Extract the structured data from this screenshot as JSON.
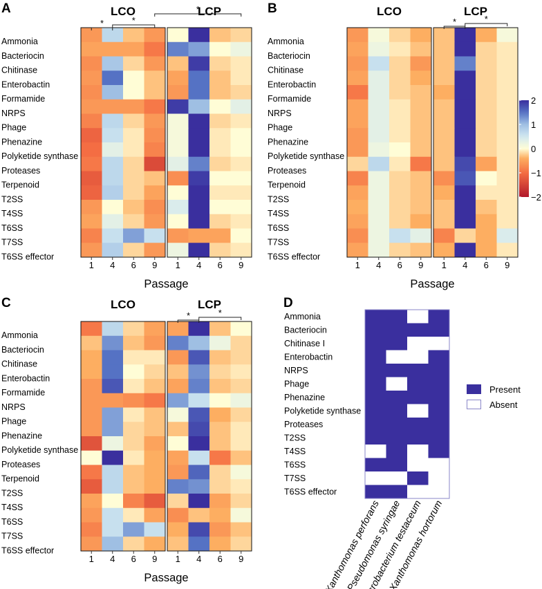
{
  "figure": {
    "cols": [
      "1",
      "4",
      "6",
      "9"
    ],
    "rows_main": [
      "Ammonia",
      "Bacteriocin",
      "Chitinase",
      "Enterobactin",
      "Formamide",
      "NRPS",
      "Phage",
      "Phenazine",
      "Polyketide synthase",
      "Proteases",
      "Terpenoid",
      "T2SS",
      "T4SS",
      "T6SS",
      "T7SS",
      "T6SS effector"
    ],
    "xlabel": "Passage",
    "group_left": "LCO",
    "group_right": "LCP",
    "star": "*",
    "colorbar_ticks": [
      "2",
      "1",
      "0",
      "−1",
      "−2"
    ],
    "colorbar_values": [
      2,
      1,
      0,
      -1,
      -2
    ],
    "colors": {
      "high": "#3a2f9e",
      "mid": "#fffdd6",
      "low": "#c1201e",
      "border": "#111111"
    }
  },
  "chart_data": [
    {
      "panel": "A",
      "type": "heatmap",
      "xlabel": "Passage",
      "zlim": [
        -2,
        2
      ],
      "groups": [
        {
          "name": "LCO",
          "values": [
            [
              -0.6,
              0.7,
              -0.3,
              -0.6
            ],
            [
              -0.5,
              -0.5,
              -0.5,
              -0.9
            ],
            [
              -0.7,
              0.9,
              -0.2,
              -0.6
            ],
            [
              -0.6,
              1.5,
              0.0,
              -0.3
            ],
            [
              -0.7,
              1.0,
              0.0,
              -0.3
            ],
            [
              -0.6,
              -0.6,
              -0.6,
              -0.9
            ],
            [
              -0.8,
              0.7,
              -0.2,
              -0.6
            ],
            [
              -1.1,
              0.6,
              -0.1,
              -0.7
            ],
            [
              -1.0,
              0.3,
              -0.1,
              -0.8
            ],
            [
              -0.9,
              0.7,
              -0.2,
              -1.4
            ],
            [
              -1.2,
              0.7,
              -0.2,
              -0.3
            ],
            [
              -1.1,
              0.8,
              -0.2,
              -0.5
            ],
            [
              -0.6,
              0.0,
              -0.3,
              -0.7
            ],
            [
              -0.5,
              0.3,
              -0.2,
              -0.6
            ],
            [
              -0.8,
              0.6,
              1.2,
              0.6
            ],
            [
              -0.6,
              0.8,
              -0.2,
              -0.6
            ]
          ]
        },
        {
          "name": "LCP",
          "values": [
            [
              0.0,
              2.0,
              -0.3,
              -0.2
            ],
            [
              1.4,
              1.2,
              0.0,
              0.2
            ],
            [
              -0.3,
              1.9,
              -0.2,
              -0.1
            ],
            [
              -0.5,
              1.5,
              -0.3,
              -0.1
            ],
            [
              -0.6,
              1.5,
              -0.3,
              -0.2
            ],
            [
              1.9,
              1.0,
              0.0,
              0.3
            ],
            [
              0.1,
              2.0,
              -0.2,
              -0.1
            ],
            [
              0.1,
              2.0,
              -0.1,
              0.0
            ],
            [
              0.1,
              2.0,
              -0.1,
              0.0
            ],
            [
              0.3,
              1.4,
              -0.2,
              -0.1
            ],
            [
              -0.7,
              1.9,
              0.0,
              0.0
            ],
            [
              0.0,
              2.0,
              -0.1,
              -0.1
            ],
            [
              0.4,
              2.0,
              0.0,
              0.0
            ],
            [
              0.0,
              2.0,
              -0.2,
              -0.1
            ],
            [
              -0.6,
              -0.5,
              -0.5,
              0.0
            ],
            [
              0.2,
              2.0,
              -0.2,
              -0.1
            ]
          ]
        }
      ],
      "brackets": [
        {
          "group": "LCO",
          "from": 0,
          "to": 1
        },
        {
          "group": "LCO",
          "from": 1,
          "to": 3
        },
        {
          "group": "LCO-LCP",
          "from": 3,
          "to": 7
        }
      ]
    },
    {
      "panel": "B",
      "type": "heatmap",
      "xlabel": "Passage",
      "zlim": [
        -2,
        2
      ],
      "groups": [
        {
          "name": "LCO",
          "values": [
            [
              -0.6,
              0.1,
              -0.2,
              -0.4
            ],
            [
              -0.5,
              0.2,
              -0.1,
              -0.3
            ],
            [
              -0.6,
              0.6,
              -0.2,
              -0.6
            ],
            [
              -0.5,
              0.3,
              -0.2,
              -0.4
            ],
            [
              -0.9,
              0.3,
              -0.2,
              -0.3
            ],
            [
              -0.5,
              0.3,
              -0.1,
              -0.3
            ],
            [
              -0.5,
              0.3,
              -0.1,
              -0.3
            ],
            [
              -0.6,
              0.3,
              -0.1,
              -0.3
            ],
            [
              -0.6,
              0.2,
              0.0,
              -0.3
            ],
            [
              -0.2,
              0.7,
              -0.1,
              -0.9
            ],
            [
              -0.8,
              0.2,
              -0.2,
              -0.3
            ],
            [
              -0.5,
              0.2,
              -0.2,
              -0.3
            ],
            [
              -0.4,
              0.2,
              -0.2,
              -0.3
            ],
            [
              -0.5,
              0.2,
              -0.2,
              -0.4
            ],
            [
              -0.7,
              0.2,
              0.6,
              0.3
            ],
            [
              -0.5,
              0.2,
              -0.2,
              -0.3
            ]
          ]
        },
        {
          "name": "LCP",
          "values": [
            [
              -0.3,
              2.0,
              -0.4,
              0.1
            ],
            [
              -0.3,
              2.0,
              -0.2,
              -0.1
            ],
            [
              -0.3,
              1.4,
              -0.2,
              -0.1
            ],
            [
              -0.3,
              2.0,
              -0.2,
              -0.1
            ],
            [
              -0.4,
              2.0,
              -0.2,
              -0.1
            ],
            [
              -0.3,
              2.0,
              -0.2,
              -0.1
            ],
            [
              -0.3,
              2.0,
              -0.2,
              -0.1
            ],
            [
              -0.3,
              2.0,
              -0.2,
              -0.1
            ],
            [
              -0.3,
              2.0,
              -0.2,
              -0.1
            ],
            [
              -0.3,
              1.8,
              -0.5,
              -0.1
            ],
            [
              -0.7,
              1.7,
              0.0,
              -0.1
            ],
            [
              -0.4,
              2.0,
              -0.1,
              -0.1
            ],
            [
              -0.3,
              2.0,
              -0.3,
              -0.1
            ],
            [
              -0.3,
              2.0,
              -0.4,
              -0.1
            ],
            [
              -0.8,
              -0.2,
              -0.4,
              0.4
            ],
            [
              -0.4,
              2.0,
              -0.4,
              -0.1
            ]
          ]
        }
      ],
      "brackets": [
        {
          "group": "LCP",
          "from": 0,
          "to": 1
        },
        {
          "group": "LCP",
          "from": 1,
          "to": 3
        }
      ]
    },
    {
      "panel": "C",
      "type": "heatmap",
      "xlabel": "Passage",
      "zlim": [
        -2,
        2
      ],
      "groups": [
        {
          "name": "LCO",
          "values": [
            [
              -0.9,
              0.7,
              -0.2,
              -0.5
            ],
            [
              -0.3,
              1.3,
              -0.3,
              -0.6
            ],
            [
              -0.4,
              1.5,
              -0.1,
              -0.1
            ],
            [
              -0.4,
              1.5,
              0.0,
              -0.2
            ],
            [
              -0.6,
              1.7,
              -0.1,
              -0.3
            ],
            [
              -0.6,
              -0.6,
              -0.7,
              -0.9
            ],
            [
              -0.6,
              1.2,
              -0.1,
              -0.3
            ],
            [
              -0.6,
              1.2,
              -0.2,
              -0.3
            ],
            [
              -1.3,
              0.2,
              -0.2,
              -0.5
            ],
            [
              0.0,
              2.0,
              -0.1,
              -0.4
            ],
            [
              -0.9,
              0.7,
              -0.3,
              -0.4
            ],
            [
              -1.2,
              0.7,
              -0.3,
              -0.4
            ],
            [
              -0.5,
              0.0,
              -0.8,
              -1.2
            ],
            [
              -0.6,
              0.6,
              -0.1,
              -0.5
            ],
            [
              -0.8,
              0.6,
              1.2,
              0.6
            ],
            [
              -0.6,
              1.0,
              -0.2,
              -0.4
            ]
          ]
        },
        {
          "name": "LCP",
          "values": [
            [
              -0.5,
              2.0,
              -0.3,
              0.0
            ],
            [
              1.4,
              1.0,
              0.2,
              -0.2
            ],
            [
              -0.6,
              1.7,
              -0.3,
              -0.2
            ],
            [
              -0.3,
              1.3,
              -0.2,
              -0.1
            ],
            [
              -0.5,
              1.4,
              -0.3,
              -0.2
            ],
            [
              1.2,
              0.6,
              0.0,
              0.2
            ],
            [
              0.1,
              1.7,
              -0.4,
              -0.2
            ],
            [
              -0.3,
              1.8,
              -0.3,
              -0.1
            ],
            [
              0.0,
              2.0,
              -0.3,
              -0.1
            ],
            [
              -0.5,
              0.6,
              -0.9,
              -0.3
            ],
            [
              -0.6,
              1.6,
              -0.2,
              0.1
            ],
            [
              1.4,
              1.3,
              -0.2,
              -0.1
            ],
            [
              -0.2,
              2.0,
              -0.5,
              -0.2
            ],
            [
              -0.7,
              -0.3,
              -0.4,
              0.1
            ],
            [
              -0.4,
              1.8,
              -0.6,
              -0.3
            ],
            [
              -0.3,
              1.5,
              -0.4,
              -0.2
            ]
          ]
        }
      ],
      "brackets": [
        {
          "group": "LCP",
          "from": 0,
          "to": 1
        },
        {
          "group": "LCP",
          "from": 1,
          "to": 3
        }
      ]
    },
    {
      "panel": "D",
      "type": "heatmap",
      "rows": [
        "Ammonia",
        "Bacteriocin",
        "Chitinase I",
        "Enterobactin",
        "NRPS",
        "Phage",
        "Phenazine",
        "Polyketide synthase",
        "Proteases",
        "T2SS",
        "T4SS",
        "T6SS",
        "T7SS",
        "T6SS effector"
      ],
      "columns": [
        "Xanthomonas perforans",
        "Pseudomonas syringae",
        "Microbacterium testaceum",
        "Xanthomonas hortorum"
      ],
      "legend": [
        "Present",
        "Absent"
      ],
      "values": [
        [
          1,
          1,
          0,
          1
        ],
        [
          1,
          1,
          1,
          1
        ],
        [
          1,
          1,
          0,
          0
        ],
        [
          1,
          0,
          0,
          1
        ],
        [
          1,
          1,
          1,
          1
        ],
        [
          1,
          0,
          1,
          1
        ],
        [
          1,
          1,
          1,
          1
        ],
        [
          1,
          1,
          0,
          1
        ],
        [
          1,
          1,
          1,
          1
        ],
        [
          1,
          1,
          1,
          1
        ],
        [
          0,
          1,
          0,
          1
        ],
        [
          1,
          1,
          0,
          0
        ],
        [
          0,
          0,
          1,
          0
        ],
        [
          1,
          1,
          0,
          0
        ]
      ]
    }
  ]
}
